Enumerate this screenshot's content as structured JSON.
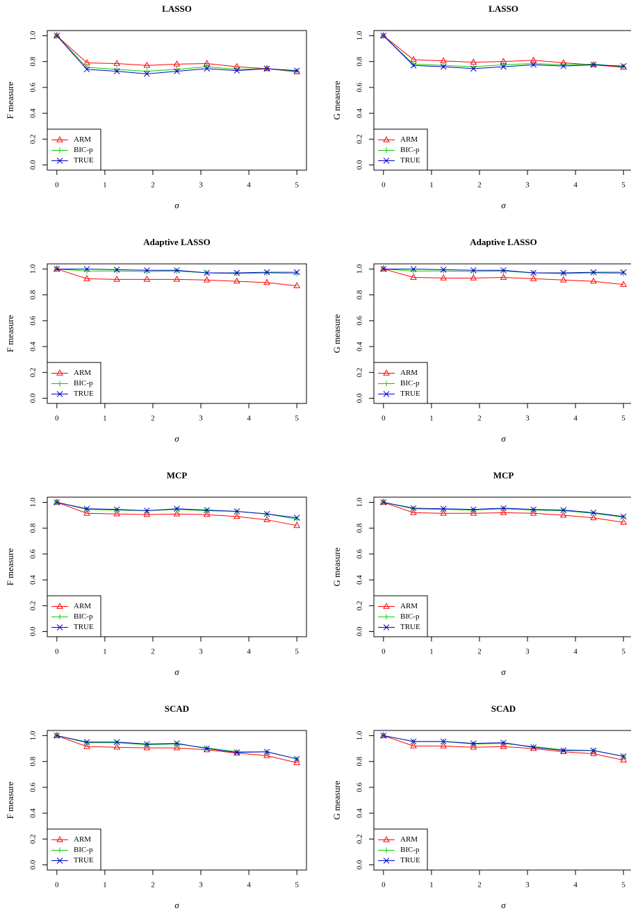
{
  "chart_data": [
    {
      "type": "line",
      "title": "LASSO",
      "xlabel": "σ",
      "ylabel": "F measure",
      "x": [
        0,
        0.625,
        1.25,
        1.875,
        2.5,
        3.125,
        3.75,
        4.375,
        5
      ],
      "series": [
        {
          "name": "ARM",
          "color": "#ff0000",
          "marker": "triangle",
          "values": [
            1.0,
            0.79,
            0.785,
            0.77,
            0.78,
            0.785,
            0.76,
            0.745,
            0.72
          ]
        },
        {
          "name": "BIC-p",
          "color": "#00cc00",
          "marker": "plus",
          "values": [
            1.0,
            0.755,
            0.74,
            0.725,
            0.74,
            0.76,
            0.74,
            0.745,
            0.725
          ]
        },
        {
          "name": "TRUE",
          "color": "#0000cc",
          "marker": "cross",
          "values": [
            1.0,
            0.74,
            0.725,
            0.705,
            0.725,
            0.745,
            0.73,
            0.745,
            0.73
          ]
        }
      ],
      "xlim": [
        -0.2,
        5.2
      ],
      "ylim": [
        -0.04,
        1.04
      ],
      "xticks": [
        0,
        1,
        2,
        3,
        4,
        5
      ],
      "yticks": [
        {
          "value": 0,
          "label": "0.0"
        },
        0.2,
        0.4,
        0.6,
        0.8,
        {
          "value": 1,
          "label": "1.0"
        }
      ],
      "legend": "bottom-left"
    },
    {
      "type": "line",
      "title": "LASSO",
      "xlabel": "σ",
      "ylabel": "G measure",
      "x": [
        0,
        0.625,
        1.25,
        1.875,
        2.5,
        3.125,
        3.75,
        4.375,
        5
      ],
      "series": [
        {
          "name": "ARM",
          "color": "#ff0000",
          "marker": "triangle",
          "values": [
            1.0,
            0.815,
            0.805,
            0.795,
            0.8,
            0.81,
            0.79,
            0.775,
            0.755
          ]
        },
        {
          "name": "BIC-p",
          "color": "#00cc00",
          "marker": "plus",
          "values": [
            1.0,
            0.78,
            0.77,
            0.76,
            0.775,
            0.785,
            0.775,
            0.78,
            0.76
          ]
        },
        {
          "name": "TRUE",
          "color": "#0000cc",
          "marker": "cross",
          "values": [
            1.0,
            0.77,
            0.76,
            0.745,
            0.76,
            0.775,
            0.765,
            0.775,
            0.765
          ]
        }
      ],
      "xlim": [
        -0.2,
        5.2
      ],
      "ylim": [
        -0.04,
        1.04
      ],
      "xticks": [
        0,
        1,
        2,
        3,
        4,
        5
      ],
      "yticks": [
        {
          "value": 0,
          "label": "0.0"
        },
        0.2,
        0.4,
        0.6,
        0.8,
        {
          "value": 1,
          "label": "1.0"
        }
      ],
      "legend": "bottom-left"
    },
    {
      "type": "line",
      "title": "Adaptive LASSO",
      "xlabel": "σ",
      "ylabel": "F measure",
      "x": [
        0,
        0.625,
        1.25,
        1.875,
        2.5,
        3.125,
        3.75,
        4.375,
        5
      ],
      "series": [
        {
          "name": "ARM",
          "color": "#ff0000",
          "marker": "triangle",
          "values": [
            1.0,
            0.925,
            0.92,
            0.92,
            0.92,
            0.915,
            0.905,
            0.895,
            0.87
          ]
        },
        {
          "name": "BIC-p",
          "color": "#00cc00",
          "marker": "plus",
          "values": [
            1.0,
            0.985,
            0.985,
            0.98,
            0.985,
            0.97,
            0.965,
            0.97,
            0.965
          ]
        },
        {
          "name": "TRUE",
          "color": "#0000cc",
          "marker": "cross",
          "values": [
            1.0,
            1.0,
            0.995,
            0.99,
            0.99,
            0.97,
            0.97,
            0.975,
            0.975
          ]
        }
      ],
      "xlim": [
        -0.2,
        5.2
      ],
      "ylim": [
        -0.04,
        1.04
      ],
      "xticks": [
        0,
        1,
        2,
        3,
        4,
        5
      ],
      "yticks": [
        {
          "value": 0,
          "label": "0.0"
        },
        0.2,
        0.4,
        0.6,
        0.8,
        {
          "value": 1,
          "label": "1.0"
        }
      ],
      "legend": "bottom-left"
    },
    {
      "type": "line",
      "title": "Adaptive LASSO",
      "xlabel": "σ",
      "ylabel": "G measure",
      "x": [
        0,
        0.625,
        1.25,
        1.875,
        2.5,
        3.125,
        3.75,
        4.375,
        5
      ],
      "series": [
        {
          "name": "ARM",
          "color": "#ff0000",
          "marker": "triangle",
          "values": [
            1.0,
            0.935,
            0.93,
            0.93,
            0.935,
            0.925,
            0.915,
            0.905,
            0.88
          ]
        },
        {
          "name": "BIC-p",
          "color": "#00cc00",
          "marker": "plus",
          "values": [
            1.0,
            0.985,
            0.985,
            0.98,
            0.985,
            0.97,
            0.965,
            0.97,
            0.965
          ]
        },
        {
          "name": "TRUE",
          "color": "#0000cc",
          "marker": "cross",
          "values": [
            1.0,
            1.0,
            0.995,
            0.99,
            0.99,
            0.97,
            0.97,
            0.975,
            0.975
          ]
        }
      ],
      "xlim": [
        -0.2,
        5.2
      ],
      "ylim": [
        -0.04,
        1.04
      ],
      "xticks": [
        0,
        1,
        2,
        3,
        4,
        5
      ],
      "yticks": [
        {
          "value": 0,
          "label": "0.0"
        },
        0.2,
        0.4,
        0.6,
        0.8,
        {
          "value": 1,
          "label": "1.0"
        }
      ],
      "legend": "bottom-left"
    },
    {
      "type": "line",
      "title": "MCP",
      "xlabel": "σ",
      "ylabel": "F measure",
      "x": [
        0,
        0.625,
        1.25,
        1.875,
        2.5,
        3.125,
        3.75,
        4.375,
        5
      ],
      "series": [
        {
          "name": "ARM",
          "color": "#ff0000",
          "marker": "triangle",
          "values": [
            1.0,
            0.915,
            0.91,
            0.905,
            0.91,
            0.905,
            0.89,
            0.865,
            0.82
          ]
        },
        {
          "name": "BIC-p",
          "color": "#00cc00",
          "marker": "plus",
          "values": [
            1.0,
            0.945,
            0.94,
            0.935,
            0.945,
            0.935,
            0.93,
            0.91,
            0.87
          ]
        },
        {
          "name": "TRUE",
          "color": "#0000cc",
          "marker": "cross",
          "values": [
            1.0,
            0.95,
            0.945,
            0.935,
            0.95,
            0.94,
            0.93,
            0.91,
            0.88
          ]
        }
      ],
      "xlim": [
        -0.2,
        5.2
      ],
      "ylim": [
        -0.04,
        1.04
      ],
      "xticks": [
        0,
        1,
        2,
        3,
        4,
        5
      ],
      "yticks": [
        {
          "value": 0,
          "label": "0.0"
        },
        0.2,
        0.4,
        0.6,
        0.8,
        {
          "value": 1,
          "label": "1.0"
        }
      ],
      "legend": "bottom-left"
    },
    {
      "type": "line",
      "title": "MCP",
      "xlabel": "σ",
      "ylabel": "G measure",
      "x": [
        0,
        0.625,
        1.25,
        1.875,
        2.5,
        3.125,
        3.75,
        4.375,
        5
      ],
      "series": [
        {
          "name": "ARM",
          "color": "#ff0000",
          "marker": "triangle",
          "values": [
            1.0,
            0.92,
            0.915,
            0.915,
            0.92,
            0.915,
            0.9,
            0.88,
            0.845
          ]
        },
        {
          "name": "BIC-p",
          "color": "#00cc00",
          "marker": "plus",
          "values": [
            1.0,
            0.95,
            0.945,
            0.94,
            0.95,
            0.94,
            0.935,
            0.915,
            0.885
          ]
        },
        {
          "name": "TRUE",
          "color": "#0000cc",
          "marker": "cross",
          "values": [
            1.0,
            0.955,
            0.95,
            0.945,
            0.955,
            0.945,
            0.94,
            0.92,
            0.89
          ]
        }
      ],
      "xlim": [
        -0.2,
        5.2
      ],
      "ylim": [
        -0.04,
        1.04
      ],
      "xticks": [
        0,
        1,
        2,
        3,
        4,
        5
      ],
      "yticks": [
        {
          "value": 0,
          "label": "0.0"
        },
        0.2,
        0.4,
        0.6,
        0.8,
        {
          "value": 1,
          "label": "1.0"
        }
      ],
      "legend": "bottom-left"
    },
    {
      "type": "line",
      "title": "SCAD",
      "xlabel": "σ",
      "ylabel": "F measure",
      "x": [
        0,
        0.625,
        1.25,
        1.875,
        2.5,
        3.125,
        3.75,
        4.375,
        5
      ],
      "series": [
        {
          "name": "ARM",
          "color": "#ff0000",
          "marker": "triangle",
          "values": [
            1.0,
            0.915,
            0.91,
            0.905,
            0.905,
            0.89,
            0.865,
            0.845,
            0.79
          ]
        },
        {
          "name": "BIC-p",
          "color": "#00cc00",
          "marker": "plus",
          "values": [
            1.0,
            0.945,
            0.945,
            0.93,
            0.935,
            0.905,
            0.875,
            0.875,
            0.82
          ]
        },
        {
          "name": "TRUE",
          "color": "#0000cc",
          "marker": "cross",
          "values": [
            1.0,
            0.95,
            0.95,
            0.935,
            0.94,
            0.9,
            0.87,
            0.875,
            0.82
          ]
        }
      ],
      "xlim": [
        -0.2,
        5.2
      ],
      "ylim": [
        -0.04,
        1.04
      ],
      "xticks": [
        0,
        1,
        2,
        3,
        4,
        5
      ],
      "yticks": [
        {
          "value": 0,
          "label": "0.0"
        },
        0.2,
        0.4,
        0.6,
        0.8,
        {
          "value": 1,
          "label": "1.0"
        }
      ],
      "legend": "bottom-left"
    },
    {
      "type": "line",
      "title": "SCAD",
      "xlabel": "σ",
      "ylabel": "G measure",
      "x": [
        0,
        0.625,
        1.25,
        1.875,
        2.5,
        3.125,
        3.75,
        4.375,
        5
      ],
      "series": [
        {
          "name": "ARM",
          "color": "#ff0000",
          "marker": "triangle",
          "values": [
            1.0,
            0.92,
            0.92,
            0.91,
            0.915,
            0.9,
            0.875,
            0.86,
            0.81
          ]
        },
        {
          "name": "BIC-p",
          "color": "#00cc00",
          "marker": "plus",
          "values": [
            1.0,
            0.955,
            0.955,
            0.935,
            0.94,
            0.915,
            0.89,
            0.885,
            0.84
          ]
        },
        {
          "name": "TRUE",
          "color": "#0000cc",
          "marker": "cross",
          "values": [
            1.0,
            0.955,
            0.955,
            0.94,
            0.945,
            0.91,
            0.885,
            0.885,
            0.84
          ]
        }
      ],
      "xlim": [
        -0.2,
        5.2
      ],
      "ylim": [
        -0.04,
        1.04
      ],
      "xticks": [
        0,
        1,
        2,
        3,
        4,
        5
      ],
      "yticks": [
        {
          "value": 0,
          "label": "0.0"
        },
        0.2,
        0.4,
        0.6,
        0.8,
        {
          "value": 1,
          "label": "1.0"
        }
      ],
      "legend": "bottom-left"
    }
  ]
}
